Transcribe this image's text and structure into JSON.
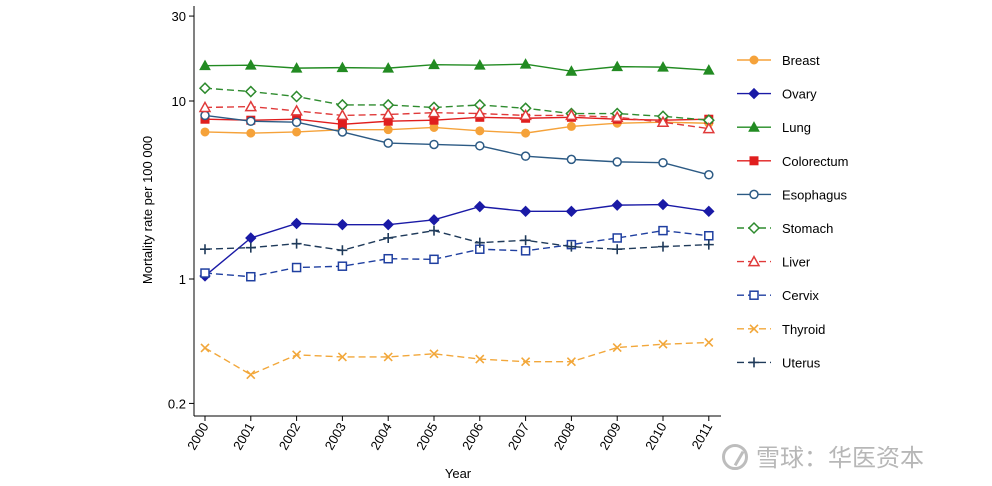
{
  "chart_data": {
    "type": "line",
    "title": "",
    "xlabel": "Year",
    "ylabel": "Mortality rate per 100 000",
    "yscale": "log",
    "ylim": [
      0.2,
      30
    ],
    "yticks": [
      0.2,
      1,
      10,
      30
    ],
    "ytick_labels": [
      "0.2",
      "1",
      "10",
      "30"
    ],
    "x": [
      2000,
      2001,
      2002,
      2003,
      2004,
      2005,
      2006,
      2007,
      2008,
      2009,
      2010,
      2011
    ],
    "x_labels": [
      "2000",
      "2001",
      "2002",
      "2003",
      "2004",
      "2005",
      "2006",
      "2007",
      "2008",
      "2009",
      "2010",
      "2011"
    ],
    "legend_position": "right",
    "grid": false,
    "series": [
      {
        "name": "Breast",
        "color": "#f5a23a",
        "marker": "circle-filled",
        "dash": "solid",
        "values": [
          6.7,
          6.6,
          6.7,
          6.9,
          6.9,
          7.1,
          6.8,
          6.6,
          7.2,
          7.5,
          7.6,
          7.5
        ]
      },
      {
        "name": "Ovary",
        "color": "#1a1aa6",
        "marker": "diamond-filled",
        "dash": "solid",
        "values": [
          1.04,
          1.7,
          2.05,
          2.02,
          2.02,
          2.15,
          2.55,
          2.4,
          2.4,
          2.6,
          2.62,
          2.4
        ]
      },
      {
        "name": "Lung",
        "color": "#228b22",
        "marker": "triangle-filled",
        "dash": "solid",
        "values": [
          15.8,
          15.9,
          15.3,
          15.4,
          15.3,
          16.0,
          15.9,
          16.1,
          14.7,
          15.6,
          15.5,
          14.9
        ]
      },
      {
        "name": "Colorectum",
        "color": "#e01e1e",
        "marker": "square-filled",
        "dash": "solid",
        "values": [
          7.9,
          7.8,
          7.9,
          7.4,
          7.7,
          7.8,
          8.1,
          8.0,
          8.1,
          7.9,
          7.8,
          7.9
        ]
      },
      {
        "name": "Esophagus",
        "color": "#2c5a84",
        "marker": "circle-hollow",
        "dash": "solid",
        "values": [
          8.3,
          7.7,
          7.6,
          6.7,
          5.8,
          5.7,
          5.6,
          4.9,
          4.7,
          4.55,
          4.5,
          3.85
        ]
      },
      {
        "name": "Stomach",
        "color": "#2e8b2e",
        "marker": "diamond-hollow",
        "dash": "dashed",
        "values": [
          11.8,
          11.3,
          10.6,
          9.5,
          9.5,
          9.2,
          9.5,
          9.1,
          8.5,
          8.5,
          8.2,
          7.8
        ]
      },
      {
        "name": "Liver",
        "color": "#e03a3a",
        "marker": "triangle-hollow",
        "dash": "dashed",
        "values": [
          9.2,
          9.3,
          8.8,
          8.3,
          8.4,
          8.6,
          8.5,
          8.3,
          8.3,
          8.1,
          7.6,
          7.0
        ]
      },
      {
        "name": "Cervix",
        "color": "#1f3fa0",
        "marker": "square-hollow",
        "dash": "dashed",
        "values": [
          1.08,
          1.03,
          1.16,
          1.18,
          1.3,
          1.29,
          1.47,
          1.44,
          1.56,
          1.7,
          1.87,
          1.75
        ]
      },
      {
        "name": "Thyroid",
        "color": "#f2a73a",
        "marker": "x",
        "dash": "dashed",
        "values": [
          0.41,
          0.29,
          0.375,
          0.365,
          0.365,
          0.38,
          0.355,
          0.343,
          0.343,
          0.412,
          0.43,
          0.44
        ]
      },
      {
        "name": "Uterus",
        "color": "#1f3a5a",
        "marker": "plus",
        "dash": "dashed",
        "values": [
          1.47,
          1.5,
          1.58,
          1.45,
          1.7,
          1.87,
          1.6,
          1.65,
          1.52,
          1.47,
          1.52,
          1.56
        ]
      }
    ]
  },
  "watermark": {
    "text": "雪球：华医资本"
  }
}
